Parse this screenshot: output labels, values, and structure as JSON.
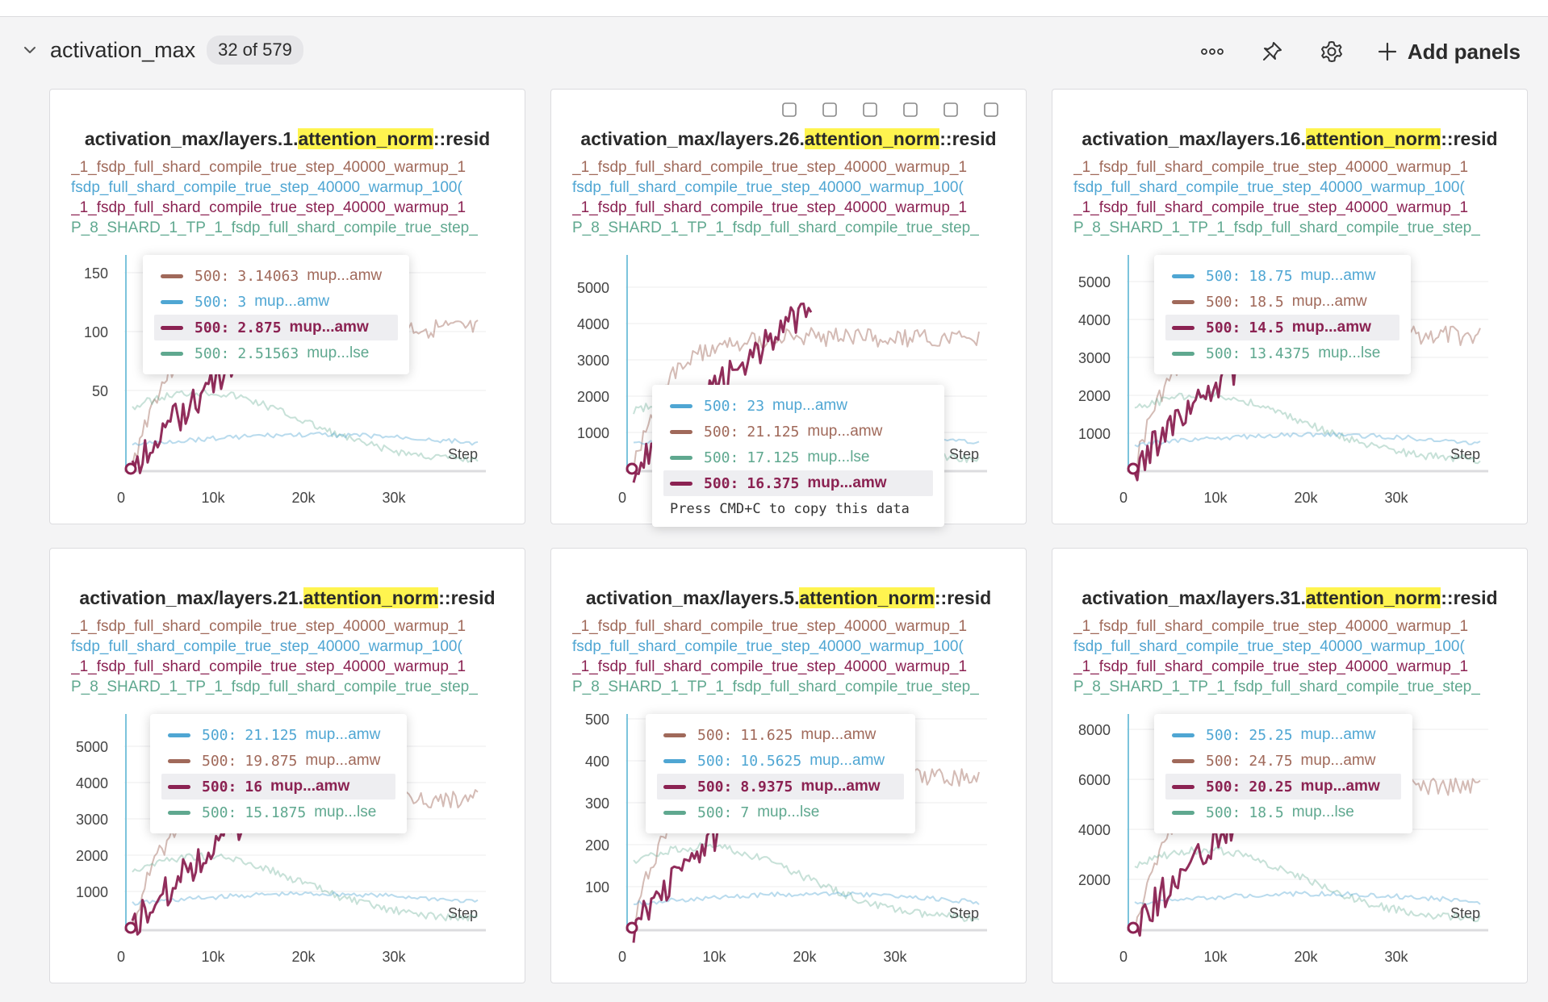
{
  "section": {
    "title": "activation_max",
    "count": "32 of 579",
    "add_panels_label": "Add panels"
  },
  "icons": {
    "collapse": "chevron-down-icon",
    "more": "more-horizontal-icon",
    "pin": "pin-icon",
    "settings": "gear-icon",
    "add": "plus-icon",
    "panel_tools": [
      "drag-handle-icon",
      "clipboard-icon",
      "share-icon",
      "edit-icon",
      "fullscreen-icon",
      "more-horizontal-icon"
    ]
  },
  "colors": {
    "brown": "#a0695a",
    "blue": "#4fa6d3",
    "maroon": "#8b2252",
    "teal": "#5fa88f",
    "highlight": "#fff44f"
  },
  "run_names": [
    "_1_fsdp_full_shard_compile_true_step_40000_warmup_1",
    "fsdp_full_shard_compile_true_step_40000_warmup_100(",
    "_1_fsdp_full_shard_compile_true_step_40000_warmup_1",
    "P_8_SHARD_1_TP_1_fsdp_full_shard_compile_true_step_"
  ],
  "tooltip_note": "Press CMD+C to copy this data",
  "step_label": "Step",
  "x_ticks": [
    "0",
    "10k",
    "20k",
    "30k"
  ],
  "panels": [
    {
      "title_prefix": "activation_max/layers.1.",
      "title_highlight": "attention_norm",
      "title_suffix": "::resid",
      "y_ticks": [
        "150",
        "100",
        "50"
      ],
      "tooltip": [
        {
          "color": "brown",
          "step": "500:",
          "value": "3.14063",
          "name": "mup...amw",
          "highlight": false
        },
        {
          "color": "blue",
          "step": "500:",
          "value": "3",
          "name": "mup...amw",
          "highlight": false
        },
        {
          "color": "maroon",
          "step": "500:",
          "value": "2.875",
          "name": "mup...amw",
          "highlight": true
        },
        {
          "color": "teal",
          "step": "500:",
          "value": "2.51563",
          "name": "mup...lse",
          "highlight": false
        }
      ]
    },
    {
      "title_prefix": "activation_max/layers.26.",
      "title_highlight": "attention_norm",
      "title_suffix": "::resid",
      "y_ticks": [
        "5000",
        "4000",
        "3000",
        "2000",
        "1000"
      ],
      "tooltip": [
        {
          "color": "blue",
          "step": "500:",
          "value": "23",
          "name": "mup...amw",
          "highlight": false
        },
        {
          "color": "brown",
          "step": "500:",
          "value": "21.125",
          "name": "mup...amw",
          "highlight": false
        },
        {
          "color": "teal",
          "step": "500:",
          "value": "17.125",
          "name": "mup...lse",
          "highlight": false
        },
        {
          "color": "maroon",
          "step": "500:",
          "value": "16.375",
          "name": "mup...amw",
          "highlight": true
        }
      ]
    },
    {
      "title_prefix": "activation_max/layers.16.",
      "title_highlight": "attention_norm",
      "title_suffix": "::resid",
      "y_ticks": [
        "5000",
        "4000",
        "3000",
        "2000",
        "1000"
      ],
      "tooltip": [
        {
          "color": "blue",
          "step": "500:",
          "value": "18.75",
          "name": "mup...amw",
          "highlight": false
        },
        {
          "color": "brown",
          "step": "500:",
          "value": "18.5",
          "name": "mup...amw",
          "highlight": false
        },
        {
          "color": "maroon",
          "step": "500:",
          "value": "14.5",
          "name": "mup...amw",
          "highlight": true
        },
        {
          "color": "teal",
          "step": "500:",
          "value": "13.4375",
          "name": "mup...lse",
          "highlight": false
        }
      ]
    },
    {
      "title_prefix": "activation_max/layers.21.",
      "title_highlight": "attention_norm",
      "title_suffix": "::resid",
      "y_ticks": [
        "5000",
        "4000",
        "3000",
        "2000",
        "1000"
      ],
      "tooltip": [
        {
          "color": "blue",
          "step": "500:",
          "value": "21.125",
          "name": "mup...amw",
          "highlight": false
        },
        {
          "color": "brown",
          "step": "500:",
          "value": "19.875",
          "name": "mup...amw",
          "highlight": false
        },
        {
          "color": "maroon",
          "step": "500:",
          "value": "16",
          "name": "mup...amw",
          "highlight": true
        },
        {
          "color": "teal",
          "step": "500:",
          "value": "15.1875",
          "name": "mup...lse",
          "highlight": false
        }
      ]
    },
    {
      "title_prefix": "activation_max/layers.5.",
      "title_highlight": "attention_norm",
      "title_suffix": "::resid",
      "y_ticks": [
        "500",
        "400",
        "300",
        "200",
        "100"
      ],
      "tooltip": [
        {
          "color": "brown",
          "step": "500:",
          "value": "11.625",
          "name": "mup...amw",
          "highlight": false
        },
        {
          "color": "blue",
          "step": "500:",
          "value": "10.5625",
          "name": "mup...amw",
          "highlight": false
        },
        {
          "color": "maroon",
          "step": "500:",
          "value": "8.9375",
          "name": "mup...amw",
          "highlight": true
        },
        {
          "color": "teal",
          "step": "500:",
          "value": "7",
          "name": "mup...lse",
          "highlight": false
        }
      ]
    },
    {
      "title_prefix": "activation_max/layers.31.",
      "title_highlight": "attention_norm",
      "title_suffix": "::resid",
      "y_ticks": [
        "8000",
        "6000",
        "4000",
        "2000"
      ],
      "tooltip": [
        {
          "color": "blue",
          "step": "500:",
          "value": "25.25",
          "name": "mup...amw",
          "highlight": false
        },
        {
          "color": "brown",
          "step": "500:",
          "value": "24.75",
          "name": "mup...amw",
          "highlight": false
        },
        {
          "color": "maroon",
          "step": "500:",
          "value": "20.25",
          "name": "mup...amw",
          "highlight": true
        },
        {
          "color": "teal",
          "step": "500:",
          "value": "18.5",
          "name": "mup...lse",
          "highlight": false
        }
      ]
    }
  ]
}
